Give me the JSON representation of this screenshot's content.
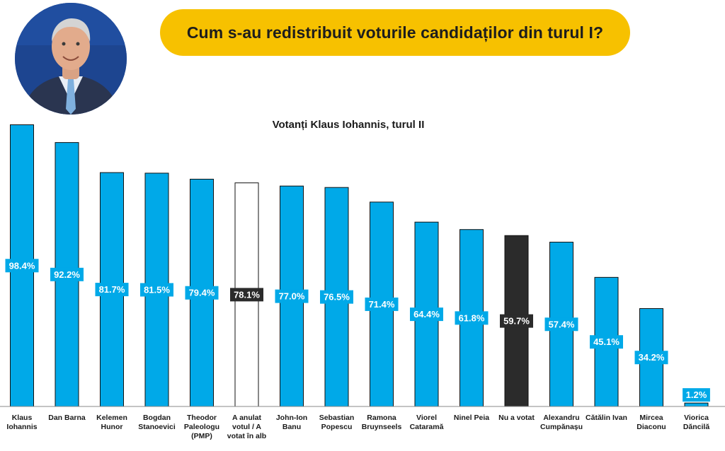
{
  "header": {
    "title": "Cum s-au redistribuit voturile candidaților din turul I?"
  },
  "chart_data": {
    "type": "bar",
    "title": "Votanți Klaus Iohannis, turul II",
    "xlabel": "",
    "ylabel": "",
    "ylim": [
      0,
      100
    ],
    "grid": false,
    "legend": "none",
    "colors": {
      "default": "#00a9e8",
      "outline": "#111111",
      "dark": "#2b2b2b",
      "label_bg_light": "#00a9e8",
      "label_bg_dark": "#2b2b2b"
    },
    "categories": [
      [
        "Klaus",
        "Iohannis"
      ],
      [
        "Dan Barna"
      ],
      [
        "Kelemen",
        "Hunor"
      ],
      [
        "Bogdan",
        "Stanoevici"
      ],
      [
        "Theodor",
        "Paleologu",
        "(PMP)"
      ],
      [
        "A anulat",
        "votul / A",
        "votat în alb"
      ],
      [
        "John-Ion",
        "Banu"
      ],
      [
        "Sebastian",
        "Popescu"
      ],
      [
        "Ramona",
        "Bruynseels"
      ],
      [
        "Viorel",
        "Cataramă"
      ],
      [
        "Ninel Peia"
      ],
      [
        "Nu a votat"
      ],
      [
        "Alexandru",
        "Cumpănașu"
      ],
      [
        "Cătălin Ivan"
      ],
      [
        "Mircea",
        "Diaconu"
      ],
      [
        "Viorica",
        "Dăncilă"
      ]
    ],
    "values": [
      98.4,
      92.2,
      81.7,
      81.5,
      79.4,
      78.1,
      77.0,
      76.5,
      71.4,
      64.4,
      61.8,
      59.7,
      57.4,
      45.1,
      34.2,
      1.2
    ],
    "labels": [
      "98.4%",
      "92.2%",
      "81.7%",
      "81.5%",
      "79.4%",
      "78.1%",
      "77.0%",
      "76.5%",
      "71.4%",
      "64.4%",
      "61.8%",
      "59.7%",
      "57.4%",
      "45.1%",
      "34.2%",
      "1.2%"
    ],
    "styles": [
      "blue",
      "blue",
      "blue",
      "blue",
      "blue",
      "white",
      "blue",
      "blue",
      "blue",
      "blue",
      "blue",
      "dark",
      "blue",
      "blue",
      "blue",
      "blue"
    ]
  }
}
